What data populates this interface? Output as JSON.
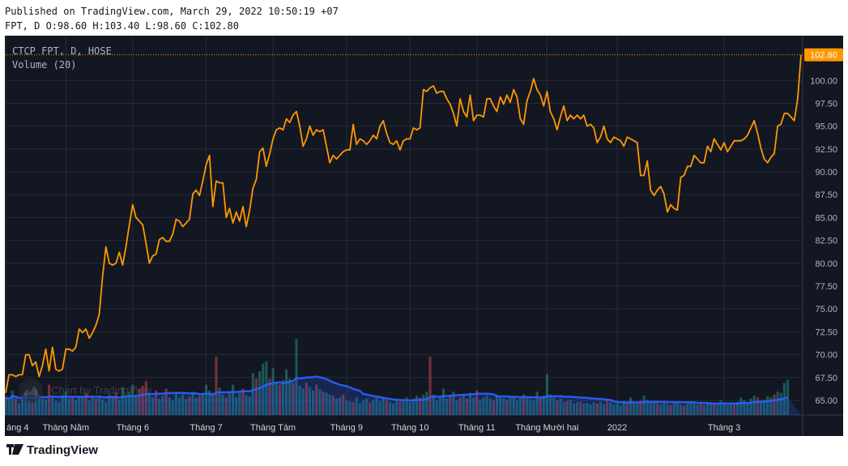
{
  "header": {
    "published": "Published on TradingView.com, March 29, 2022 10:50:19 +07",
    "ohlc": "FPT, D O:98.60 H:103.40 L:98.60 C:102.80"
  },
  "legend": {
    "symbol": "CTCP FPT, D, HOSE",
    "volume": "Volume (20)"
  },
  "watermark": "Chart by TradingView",
  "footer_brand": "TradingView",
  "colors": {
    "background": "#131722",
    "grid": "#262b38",
    "line": "#ff9800",
    "volume_up": "#26a69a",
    "volume_down": "#ef5350",
    "volume_ma": "#2962ff",
    "last_price_label": "#ff9800"
  },
  "chart_data": {
    "type": "line",
    "title": "CTCP FPT, D, HOSE",
    "last_price": "102.80",
    "y_ticks": [
      "65.00",
      "67.50",
      "70.00",
      "72.50",
      "75.00",
      "77.50",
      "80.00",
      "82.50",
      "85.00",
      "87.50",
      "90.00",
      "92.50",
      "95.00",
      "97.50",
      "100.00"
    ],
    "ylim": [
      63.4,
      104.9
    ],
    "x_ticks": [
      {
        "label": "áng 4",
        "i": 0
      },
      {
        "label": "Tháng Năm",
        "i": 18
      },
      {
        "label": "Tháng 6",
        "i": 38
      },
      {
        "label": "Tháng 7",
        "i": 60
      },
      {
        "label": "Tháng Tám",
        "i": 80
      },
      {
        "label": "Tháng 9",
        "i": 102
      },
      {
        "label": "Tháng 10",
        "i": 121
      },
      {
        "label": "Tháng 11",
        "i": 141
      },
      {
        "label": "Tháng Mười hai",
        "i": 162
      },
      {
        "label": "2022",
        "i": 183
      },
      {
        "label": "Tháng 3",
        "i": 215
      }
    ],
    "series": [
      {
        "values": [
          65.8,
          67.8,
          67.8,
          67.6,
          67.8,
          67.8,
          70.0,
          70.0,
          68.8,
          69.2,
          67.6,
          68.8,
          70.6,
          68.2,
          70.8,
          68.4,
          68.2,
          68.4,
          70.6,
          70.6,
          70.4,
          70.8,
          72.8,
          72.4,
          72.8,
          71.8,
          72.4,
          73.2,
          74.4,
          78.6,
          81.8,
          80.0,
          79.8,
          80.0,
          81.2,
          79.8,
          81.8,
          84.2,
          86.4,
          85.0,
          84.6,
          84.2,
          82.2,
          80.0,
          80.8,
          81.0,
          82.6,
          82.8,
          82.4,
          82.4,
          83.2,
          84.8,
          84.6,
          84.0,
          84.4,
          84.8,
          87.6,
          88.0,
          87.4,
          89.0,
          90.8,
          91.8,
          86.2,
          89.0,
          88.8,
          88.8,
          85.0,
          86.0,
          84.4,
          85.6,
          84.6,
          86.2,
          84.0,
          85.8,
          88.2,
          89.2,
          92.2,
          92.6,
          90.6,
          92.0,
          93.6,
          94.6,
          94.8,
          94.6,
          95.8,
          95.4,
          96.2,
          96.6,
          95.0,
          92.8,
          93.6,
          95.0,
          94.0,
          94.6,
          94.4,
          94.6,
          92.8,
          91.0,
          91.8,
          91.4,
          91.8,
          92.2,
          92.4,
          92.4,
          95.2,
          93.0,
          93.6,
          93.4,
          93.0,
          93.4,
          94.0,
          93.6,
          95.0,
          95.6,
          94.2,
          93.2,
          93.0,
          93.4,
          92.4,
          93.4,
          93.6,
          93.6,
          94.8,
          94.6,
          94.8,
          99.0,
          98.8,
          99.2,
          99.4,
          98.6,
          98.8,
          98.8,
          98.0,
          97.4,
          96.4,
          95.0,
          98.0,
          96.6,
          96.0,
          98.4,
          95.6,
          96.2,
          96.2,
          96.0,
          98.0,
          98.0,
          97.2,
          96.6,
          98.2,
          97.4,
          98.4,
          97.6,
          99.0,
          98.2,
          95.8,
          95.2,
          97.8,
          98.8,
          100.2,
          99.0,
          98.4,
          97.2,
          98.8,
          96.6,
          95.8,
          94.6,
          96.0,
          97.2,
          95.6,
          96.2,
          95.8,
          96.2,
          95.8,
          96.2,
          95.0,
          95.2,
          94.8,
          93.2,
          93.8,
          95.0,
          93.6,
          93.2,
          93.8,
          93.6,
          93.4,
          92.8,
          93.8,
          93.6,
          93.4,
          93.2,
          89.6,
          89.6,
          91.2,
          88.0,
          87.4,
          88.0,
          88.4,
          87.6,
          85.6,
          86.4,
          86.0,
          85.8,
          89.4,
          89.6,
          90.6,
          90.6,
          91.8,
          91.4,
          91.0,
          91.0,
          92.8,
          92.2,
          93.6,
          93.0,
          92.4,
          93.2,
          92.2,
          92.8,
          93.4,
          93.4,
          93.4,
          93.6,
          94.0,
          94.8,
          95.6,
          94.2,
          92.6,
          91.4,
          91.0,
          91.6,
          92.0,
          95.0,
          95.2,
          96.4,
          96.4,
          96.0,
          95.6,
          98.0,
          102.8
        ]
      }
    ],
    "volume": {
      "ma_period": 20,
      "levels": [
        0.3,
        0.25,
        0.42,
        0.28,
        0.2,
        0.33,
        0.38,
        0.25,
        0.22,
        0.45,
        0.32,
        0.28,
        0.26,
        0.52,
        0.3,
        0.24,
        0.22,
        0.35,
        0.4,
        0.28,
        0.3,
        0.26,
        0.33,
        0.29,
        0.38,
        0.25,
        0.32,
        0.28,
        0.3,
        0.27,
        0.22,
        0.35,
        0.31,
        0.38,
        0.26,
        0.48,
        0.3,
        0.4,
        0.52,
        0.32,
        0.45,
        0.5,
        0.58,
        0.35,
        0.3,
        0.42,
        0.28,
        0.33,
        0.45,
        0.3,
        0.25,
        0.38,
        0.3,
        0.35,
        0.27,
        0.31,
        0.4,
        0.29,
        0.33,
        0.36,
        0.52,
        0.42,
        0.38,
        1.0,
        0.47,
        0.35,
        0.3,
        0.4,
        0.52,
        0.3,
        0.38,
        0.45,
        0.34,
        0.31,
        0.72,
        0.63,
        0.75,
        0.88,
        0.92,
        0.62,
        0.8,
        0.56,
        0.52,
        0.6,
        0.78,
        0.62,
        0.55,
        1.3,
        0.5,
        0.45,
        0.55,
        0.48,
        0.42,
        0.52,
        0.44,
        0.4,
        0.38,
        0.35,
        0.33,
        0.28,
        0.3,
        0.35,
        0.25,
        0.23,
        0.22,
        0.3,
        0.2,
        0.25,
        0.28,
        0.22,
        0.26,
        0.3,
        0.24,
        0.28,
        0.25,
        0.22,
        0.2,
        0.27,
        0.23,
        0.25,
        0.3,
        0.22,
        0.28,
        0.33,
        0.3,
        0.35,
        0.4,
        1.0,
        0.35,
        0.25,
        0.3,
        0.45,
        0.28,
        0.32,
        0.4,
        0.25,
        0.3,
        0.35,
        0.28,
        0.38,
        0.3,
        0.42,
        0.26,
        0.3,
        0.33,
        0.28,
        0.25,
        0.35,
        0.3,
        0.28,
        0.26,
        0.32,
        0.3,
        0.25,
        0.28,
        0.35,
        0.3,
        0.27,
        0.25,
        0.4,
        0.3,
        0.33,
        0.7,
        0.35,
        0.3,
        0.25,
        0.28,
        0.22,
        0.24,
        0.26,
        0.2,
        0.22,
        0.23,
        0.2,
        0.21,
        0.18,
        0.22,
        0.2,
        0.23,
        0.19,
        0.25,
        0.22,
        0.18,
        0.2,
        0.16,
        0.24,
        0.22,
        0.3,
        0.22,
        0.2,
        0.25,
        0.33,
        0.26,
        0.21,
        0.22,
        0.2,
        0.18,
        0.21,
        0.19,
        0.17,
        0.2,
        0.22,
        0.18,
        0.16,
        0.19,
        0.22,
        0.2,
        0.18,
        0.21,
        0.17,
        0.19,
        0.22,
        0.2,
        0.18,
        0.25,
        0.21,
        0.17,
        0.2,
        0.18,
        0.22,
        0.3,
        0.25,
        0.22,
        0.28,
        0.33,
        0.3,
        0.25,
        0.26,
        0.32,
        0.3,
        0.35,
        0.4,
        0.38,
        0.55,
        0.6
      ],
      "down_indices": [
        3,
        8,
        13,
        20,
        24,
        27,
        33,
        40,
        41,
        42,
        45,
        48,
        55,
        58,
        63,
        66,
        71,
        75,
        79,
        82,
        86,
        90,
        93,
        95,
        98,
        101,
        104,
        109,
        114,
        118,
        124,
        127,
        133,
        136,
        138,
        141,
        146,
        150,
        155,
        160,
        165,
        168,
        172,
        177,
        180,
        186,
        190,
        195,
        199,
        203,
        208,
        212,
        218,
        225,
        230
      ]
    }
  }
}
